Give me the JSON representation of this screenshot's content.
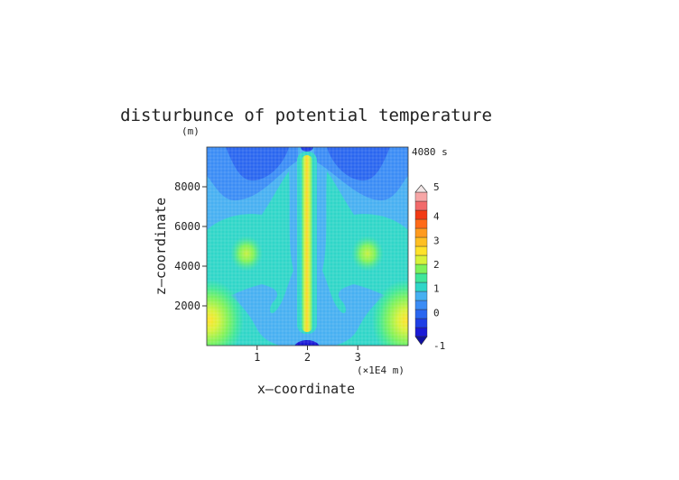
{
  "chart_data": {
    "type": "heatmap",
    "title": "disturbunce of potential temperature",
    "time_label": "4080 s",
    "xlabel": "x—coordinate",
    "ylabel": "z—coordinate",
    "y_unit": "(m)",
    "x_unit": "(×1E4 m)",
    "xlim": [
      0,
      4
    ],
    "ylim": [
      0,
      10000
    ],
    "x_ticks": [
      "1",
      "2",
      "3"
    ],
    "y_ticks": [
      "2000",
      "4000",
      "6000",
      "8000"
    ],
    "colorbar": {
      "ticks": [
        "-1",
        "0",
        "1",
        "2",
        "3",
        "4",
        "5"
      ],
      "range": [
        -1,
        5
      ],
      "colors": [
        "#1a1ad6",
        "#1f3fe6",
        "#2a66f0",
        "#3b8cf5",
        "#47b0f2",
        "#2fd6c8",
        "#3fe69a",
        "#7ef25a",
        "#d8f23a",
        "#ffe22a",
        "#ffbf22",
        "#ff9a1e",
        "#ff6a18",
        "#f23a14",
        "#f26a6a",
        "#f7a6a6"
      ]
    },
    "field_features": [
      {
        "feature": "central updraft plume",
        "x": 2.0,
        "z_top": 9600,
        "value": 2.0
      },
      {
        "feature": "left lobe",
        "x": 0.8,
        "z": 4800,
        "value": 1.4
      },
      {
        "feature": "right lobe",
        "x": 3.2,
        "z": 4800,
        "value": 1.4
      },
      {
        "feature": "lower-left warm region",
        "x": 0.1,
        "z": 1200,
        "value": 1.8
      },
      {
        "feature": "lower-right warm region",
        "x": 3.9,
        "z": 1200,
        "value": 1.8
      },
      {
        "feature": "cold base of plume",
        "x": 2.0,
        "z": 0,
        "value": -0.8
      },
      {
        "feature": "upper cold regions",
        "x": 0.5,
        "z": 9500,
        "value": -0.4
      }
    ]
  }
}
